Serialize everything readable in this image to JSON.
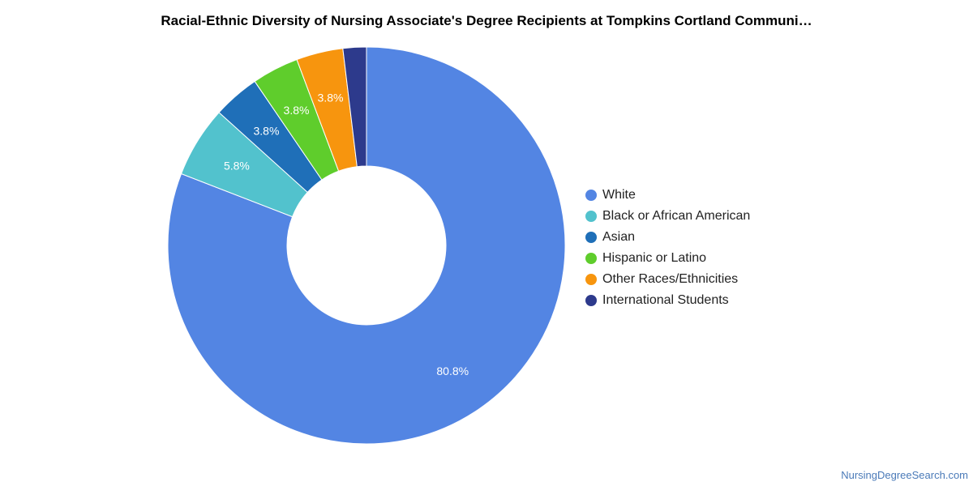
{
  "title": "Racial-Ethnic Diversity of Nursing Associate's Degree Recipients at Tompkins Cortland Communi…",
  "footer_link": "NursingDegreeSearch.com",
  "chart_data": {
    "type": "pie",
    "variant": "donut",
    "title": "Racial-Ethnic Diversity of Nursing Associate's Degree Recipients at Tompkins Cortland Communi…",
    "legend_position": "right",
    "categories": [
      "White",
      "Black or African American",
      "Asian",
      "Hispanic or Latino",
      "Other Races/Ethnicities",
      "International Students"
    ],
    "values": [
      80.8,
      5.8,
      3.8,
      3.8,
      3.8,
      1.9
    ],
    "labels": [
      "80.8%",
      "5.8%",
      "3.8%",
      "3.8%",
      "3.8%",
      ""
    ],
    "colors": [
      "#5385e3",
      "#52c2cd",
      "#1f6fb8",
      "#5fcd2c",
      "#f7950e",
      "#2d3a8c"
    ]
  }
}
